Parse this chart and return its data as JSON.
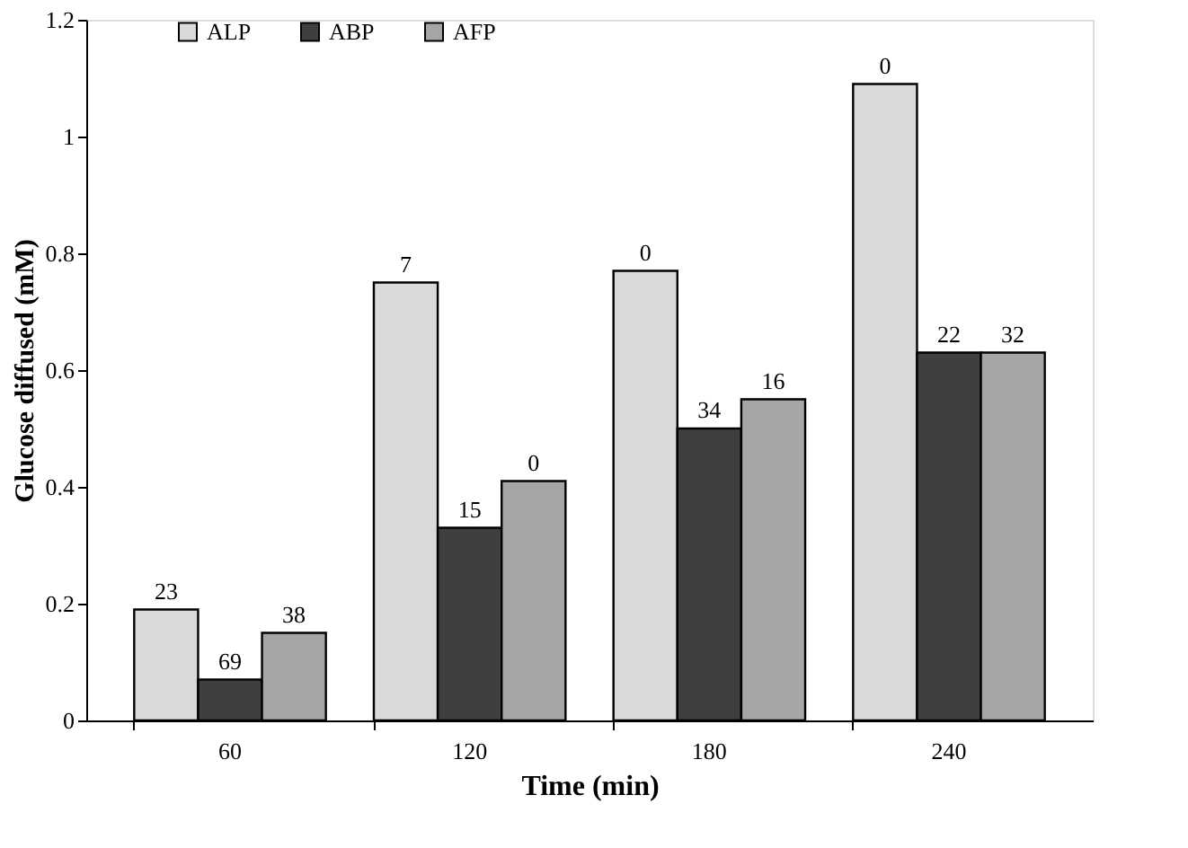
{
  "chart_data": {
    "type": "bar",
    "xlabel": "Time (min)",
    "ylabel": "Glucose diffused  (mM)",
    "categories": [
      "60",
      "120",
      "180",
      "240"
    ],
    "series": [
      {
        "name": "ALP",
        "color": "#d9d9d9",
        "values": [
          0.19,
          0.75,
          0.77,
          1.09
        ]
      },
      {
        "name": "ABP",
        "color": "#3f3f3f",
        "values": [
          0.07,
          0.33,
          0.5,
          0.63
        ]
      },
      {
        "name": "AFP",
        "color": "#a6a6a6",
        "values": [
          0.15,
          0.41,
          0.55,
          0.63
        ]
      }
    ],
    "annotations": [
      "23",
      "69",
      "38",
      "7",
      "15",
      "0",
      "0",
      "34",
      "16",
      "0",
      "22",
      "32"
    ],
    "ylim": [
      0,
      1.2
    ],
    "yticks": [
      0,
      0.2,
      0.4,
      0.6,
      0.8,
      1,
      1.2
    ],
    "grid": false,
    "legend": "top left"
  }
}
